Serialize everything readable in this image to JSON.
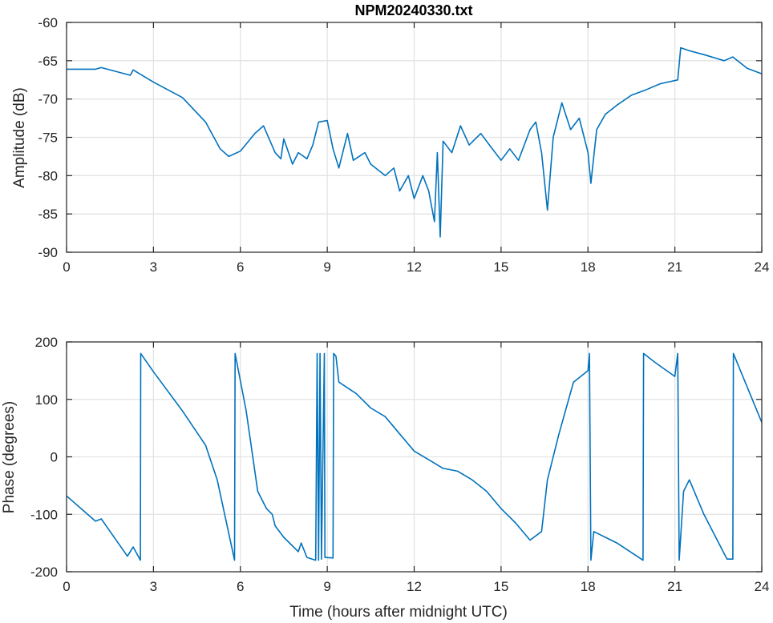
{
  "chart_data": [
    {
      "type": "line",
      "title": "NPM20240330.txt",
      "xlabel": "",
      "ylabel": "Amplitude (dB)",
      "xlim": [
        0,
        24
      ],
      "ylim": [
        -90,
        -60
      ],
      "xticks": [
        0,
        3,
        6,
        9,
        12,
        15,
        18,
        21,
        24
      ],
      "yticks": [
        -60,
        -65,
        -70,
        -75,
        -80,
        -85,
        -90
      ],
      "grid": true,
      "color": "#0072bd",
      "series": [
        {
          "name": "Amplitude",
          "x": [
            0,
            1,
            1.2,
            2.2,
            2.3,
            3,
            4,
            4.8,
            5.3,
            5.6,
            6,
            6.5,
            6.8,
            7.2,
            7.4,
            7.5,
            7.8,
            8,
            8.3,
            8.5,
            8.7,
            9,
            9.2,
            9.4,
            9.6,
            9.7,
            9.9,
            10.3,
            10.5,
            11,
            11.3,
            11.5,
            11.8,
            12,
            12.3,
            12.5,
            12.7,
            12.8,
            12.9,
            13,
            13.3,
            13.6,
            13.9,
            14.3,
            14.6,
            15,
            15.3,
            15.6,
            16,
            16.2,
            16.4,
            16.6,
            16.8,
            17.1,
            17.4,
            17.7,
            18,
            18.1,
            18.3,
            18.6,
            19,
            19.5,
            20,
            20.5,
            21.1,
            21.2,
            21.5,
            22,
            22.7,
            23,
            23.5,
            24
          ],
          "y": [
            -66.1,
            -66.1,
            -65.9,
            -66.9,
            -66.2,
            -67.8,
            -69.8,
            -73,
            -76.5,
            -77.5,
            -76.8,
            -74.5,
            -73.5,
            -77,
            -77.8,
            -75.2,
            -78.5,
            -77,
            -77.8,
            -76,
            -73,
            -72.8,
            -76.5,
            -79,
            -76,
            -74.5,
            -78,
            -77,
            -78.5,
            -80,
            -79,
            -82,
            -80,
            -83,
            -80,
            -82,
            -86,
            -77,
            -88,
            -75.5,
            -77,
            -73.5,
            -76,
            -74.5,
            -76,
            -78,
            -76.5,
            -78,
            -74,
            -73,
            -77,
            -84.5,
            -75,
            -70.5,
            -74,
            -72.5,
            -77,
            -81,
            -74,
            -72,
            -70.8,
            -69.5,
            -68.8,
            -68,
            -67.5,
            -63.3,
            -63.7,
            -64.2,
            -65,
            -64.5,
            -66,
            -66.7
          ]
        }
      ]
    },
    {
      "type": "line",
      "title": "",
      "xlabel": "Time (hours after midnight UTC)",
      "ylabel": "Phase (degrees)",
      "xlim": [
        0,
        24
      ],
      "ylim": [
        -200,
        200
      ],
      "xticks": [
        0,
        3,
        6,
        9,
        12,
        15,
        18,
        21,
        24
      ],
      "yticks": [
        200,
        100,
        0,
        -100,
        -200
      ],
      "grid": true,
      "color": "#0072bd",
      "series": [
        {
          "name": "Phase",
          "x": [
            0,
            1,
            1.2,
            2.1,
            2.3,
            2.55,
            2.56,
            3,
            4,
            4.8,
            5.2,
            5.8,
            5.82,
            6.2,
            6.6,
            6.9,
            7.1,
            7.2,
            7.5,
            8,
            8.1,
            8.3,
            8.6,
            8.65,
            8.7,
            8.75,
            8.8,
            8.9,
            8.92,
            9.2,
            9.22,
            9.3,
            9.4,
            10,
            10.5,
            11,
            11.5,
            12,
            12.5,
            13,
            13.5,
            14,
            14.5,
            15,
            15.5,
            16,
            16.4,
            16.6,
            17,
            17.5,
            18,
            18.05,
            18.1,
            18.2,
            19,
            19.9,
            19.92,
            20.3,
            21,
            21.1,
            21.15,
            21.3,
            21.5,
            22,
            22.8,
            23,
            23.02,
            24
          ],
          "y": [
            -68,
            -112,
            -108,
            -173,
            -157,
            -180,
            180,
            148,
            80,
            20,
            -40,
            -180,
            180,
            80,
            -60,
            -90,
            -100,
            -120,
            -140,
            -165,
            -150,
            -175,
            -180,
            180,
            -180,
            180,
            -178,
            180,
            -175,
            -176,
            180,
            175,
            130,
            110,
            85,
            70,
            40,
            10,
            -5,
            -20,
            -25,
            -40,
            -60,
            -90,
            -115,
            -145,
            -130,
            -40,
            40,
            130,
            150,
            180,
            -180,
            -130,
            -150,
            -180,
            180,
            165,
            140,
            180,
            -180,
            -60,
            -40,
            -100,
            -178,
            -178,
            180,
            60
          ]
        }
      ]
    }
  ]
}
